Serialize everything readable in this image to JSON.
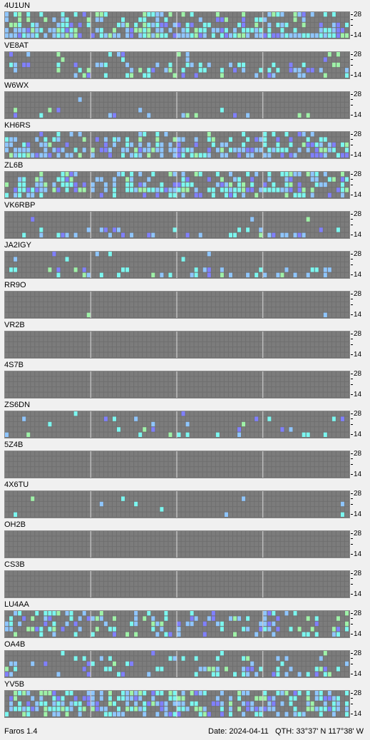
{
  "app": {
    "version": "Faros 1.4"
  },
  "status": {
    "date": "Date: 2024-04-11",
    "qth": "QTH: 33°37' N  117°38' W"
  },
  "bands": {
    "top": "28",
    "bottom": "14"
  },
  "colors": {
    "cell_empty": "#7c7c7c",
    "grid_line": "#a6a6a6",
    "hour_line": "#dcdcdc",
    "cyan": "#7cf7f0",
    "light_blue": "#8fc6ff",
    "violet": "#8080ff",
    "green": "#9ff2a8"
  },
  "stations": [
    {
      "name": "4U1UN",
      "density": [
        0.35,
        0.25,
        0.45,
        0.55,
        0.85
      ]
    },
    {
      "name": "VE8AT",
      "density": [
        0.12,
        0.05,
        0.25,
        0.35,
        0.2
      ]
    },
    {
      "name": "W6WX",
      "density": [
        0.0,
        0.03,
        0.0,
        0.05,
        0.08
      ]
    },
    {
      "name": "KH6RS",
      "density": [
        0.2,
        0.4,
        0.5,
        0.55,
        0.6
      ]
    },
    {
      "name": "ZL6B",
      "density": [
        0.3,
        0.45,
        0.55,
        0.6,
        0.35
      ]
    },
    {
      "name": "VK6RBP",
      "density": [
        0.0,
        0.05,
        0.02,
        0.1,
        0.25
      ]
    },
    {
      "name": "JA2IGY",
      "density": [
        0.03,
        0.05,
        0.05,
        0.2,
        0.25
      ]
    },
    {
      "name": "RR9O",
      "density": [
        0.0,
        0.0,
        0.0,
        0.0,
        0.03
      ]
    },
    {
      "name": "VR2B",
      "density": [
        0.0,
        0.0,
        0.0,
        0.0,
        0.0
      ]
    },
    {
      "name": "4S7B",
      "density": [
        0.0,
        0.0,
        0.0,
        0.0,
        0.0
      ]
    },
    {
      "name": "ZS6DN",
      "density": [
        0.02,
        0.05,
        0.08,
        0.1,
        0.15
      ]
    },
    {
      "name": "5Z4B",
      "density": [
        0.0,
        0.0,
        0.0,
        0.0,
        0.0
      ]
    },
    {
      "name": "4X6TU",
      "density": [
        0.0,
        0.03,
        0.03,
        0.02,
        0.05
      ]
    },
    {
      "name": "OH2B",
      "density": [
        0.0,
        0.0,
        0.0,
        0.0,
        0.0
      ]
    },
    {
      "name": "CS3B",
      "density": [
        0.0,
        0.0,
        0.0,
        0.0,
        0.0
      ]
    },
    {
      "name": "LU4AA",
      "density": [
        0.25,
        0.3,
        0.35,
        0.35,
        0.25
      ]
    },
    {
      "name": "OA4B",
      "density": [
        0.08,
        0.12,
        0.2,
        0.25,
        0.25
      ]
    },
    {
      "name": "YV5B",
      "density": [
        0.55,
        0.6,
        0.65,
        0.65,
        0.5
      ]
    }
  ]
}
